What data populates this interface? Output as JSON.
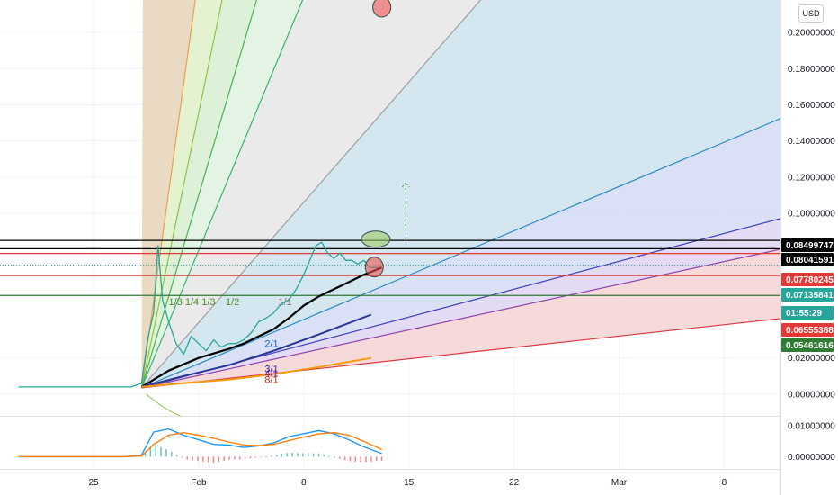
{
  "currency": "USD",
  "chart_data": [
    {
      "type": "line",
      "panel": "price",
      "y_scale": "linear",
      "ylim": [
        -0.012,
        0.218
      ],
      "y_ticks": [
        "0.20000000",
        "0.18000000",
        "0.16000000",
        "0.14000000",
        "0.12000000",
        "0.10000000",
        "0.02000000",
        "0.00000000"
      ],
      "x_ticks": [
        "25",
        "Feb",
        "8",
        "15",
        "22",
        "Mar",
        "8"
      ],
      "x_tick_days": [
        25,
        32,
        39,
        46,
        53,
        60,
        67
      ],
      "pivot": {
        "day": 28.2,
        "price": 0.0035
      },
      "gann_fan": {
        "fills": [
          {
            "color": "#e8d3b8",
            "to_angle": 0
          },
          {
            "color": "#dff0c8",
            "to_angle": 1
          },
          {
            "color": "#d7efd2",
            "to_angle": 2
          },
          {
            "color": "#dff2df",
            "to_angle": 3
          },
          {
            "color": "#e6e6e6",
            "to_angle": 4
          },
          {
            "color": "#cde3ee",
            "to_angle": 5
          },
          {
            "color": "#d3dcf5",
            "to_angle": 6
          },
          {
            "color": "#e0d4f2",
            "to_angle": 7
          },
          {
            "color": "#f4d3d3",
            "to_angle": 8
          }
        ],
        "rays": [
          {
            "slope": 0.06,
            "color": "#e8a14d"
          },
          {
            "slope": 0.04,
            "color": "#8bc34a"
          },
          {
            "slope": 0.028,
            "color": "#4caf50"
          },
          {
            "slope": 0.02,
            "color": "#3bb36b"
          },
          {
            "slope": 0.0095,
            "color": "#9e9e9e"
          },
          {
            "slope": 0.0035,
            "color": "#2e8bc0"
          },
          {
            "slope": 0.0022,
            "color": "#3f3fbf"
          },
          {
            "slope": 0.0018,
            "color": "#8e44ad"
          },
          {
            "slope": 0.0009,
            "color": "#d9363e"
          }
        ],
        "labels": [
          {
            "text": "1/3",
            "day": 30.0,
            "price": 0.0492,
            "color": "#558b2f"
          },
          {
            "text": "1/4",
            "day": 31.1,
            "price": 0.0492,
            "color": "#558b2f"
          },
          {
            "text": "1/3",
            "day": 32.2,
            "price": 0.0492,
            "color": "#558b2f"
          },
          {
            "text": "1/2",
            "day": 33.8,
            "price": 0.0492,
            "color": "#558b2f"
          },
          {
            "text": "1/1",
            "day": 37.3,
            "price": 0.0492,
            "color": "#757575"
          },
          {
            "text": "2/1",
            "day": 36.4,
            "price": 0.0262,
            "color": "#1565c0"
          },
          {
            "text": "3/1",
            "day": 36.4,
            "price": 0.0122,
            "color": "#283593"
          },
          {
            "text": "4/1",
            "day": 36.4,
            "price": 0.0096,
            "color": "#6a1b9a"
          },
          {
            "text": "8/1",
            "day": 36.4,
            "price": 0.0061,
            "color": "#c62828"
          }
        ]
      },
      "horizontal_levels": [
        {
          "label": "0.08499747",
          "value": 0.085,
          "color": "#000000"
        },
        {
          "label": "0.08041591",
          "value": 0.0804,
          "color": "#000000"
        },
        {
          "label": "0.07780245",
          "value": 0.0778,
          "color": "#e53935"
        },
        {
          "label": "0.07135841",
          "value": 0.0714,
          "color": "#26a69a"
        },
        {
          "label": "01:55:29",
          "value": 0.0678,
          "color": "#26a69a"
        },
        {
          "label": "0.06555388",
          "value": 0.0656,
          "color": "#e53935"
        },
        {
          "label": "0.05461616",
          "value": 0.0546,
          "color": "#2e7d32"
        }
      ],
      "series": [
        {
          "kind": "price",
          "color": "#26a69a",
          "x": [
            20,
            22,
            24,
            26,
            27.5,
            28.2,
            28.6,
            29.0,
            29.3,
            29.6,
            30.0,
            30.5,
            31.0,
            31.5,
            32.0,
            32.5,
            33.0,
            33.5,
            34.0,
            34.5,
            35.0,
            35.5,
            36.0,
            36.5,
            37.0,
            37.5,
            38.0,
            38.5,
            39.0,
            39.4,
            39.8,
            40.2,
            40.6,
            41.0,
            41.4,
            41.8,
            42.2,
            42.6,
            43.0,
            43.4,
            43.8,
            44.2
          ],
          "y": [
            0.004,
            0.004,
            0.004,
            0.004,
            0.004,
            0.006,
            0.03,
            0.045,
            0.082,
            0.052,
            0.04,
            0.028,
            0.022,
            0.032,
            0.028,
            0.024,
            0.03,
            0.026,
            0.028,
            0.028,
            0.03,
            0.034,
            0.04,
            0.042,
            0.045,
            0.05,
            0.052,
            0.058,
            0.066,
            0.074,
            0.082,
            0.084,
            0.078,
            0.075,
            0.078,
            0.074,
            0.074,
            0.072,
            0.074,
            0.07,
            0.07,
            0.07
          ]
        },
        {
          "kind": "moving_average",
          "color": "#000000",
          "x": [
            28.2,
            30,
            32,
            34,
            35,
            36,
            37,
            38,
            39,
            40,
            41,
            42,
            43,
            44.2
          ],
          "y": [
            0.004,
            0.013,
            0.02,
            0.025,
            0.028,
            0.032,
            0.036,
            0.042,
            0.049,
            0.054,
            0.058,
            0.062,
            0.066,
            0.07
          ]
        },
        {
          "kind": "moving_average",
          "color": "#283593",
          "x": [
            28.2,
            31,
            34,
            37,
            40,
            43.5
          ],
          "y": [
            0.004,
            0.01,
            0.016,
            0.024,
            0.033,
            0.044
          ]
        },
        {
          "kind": "moving_average",
          "color": "#f39c12",
          "x": [
            28.2,
            31,
            34,
            37,
            40,
            43.5
          ],
          "y": [
            0.004,
            0.006,
            0.008,
            0.011,
            0.015,
            0.02
          ]
        }
      ],
      "annotations": [
        {
          "kind": "ellipse",
          "day": 43.8,
          "price": 0.0857,
          "color": "#9ccc65"
        },
        {
          "kind": "ellipse",
          "day": 43.7,
          "price": 0.0703,
          "color": "#ef5350"
        },
        {
          "kind": "ellipse",
          "day": 44.2,
          "price": 0.214,
          "color": "#ef5350"
        },
        {
          "kind": "dotted_arrow",
          "day": 45.8,
          "from_price": 0.0857,
          "to_price": 0.117,
          "color": "#43a047"
        }
      ]
    },
    {
      "type": "line",
      "panel": "indicator",
      "ylim": [
        -0.004,
        0.013
      ],
      "y_ticks": [
        "0.01000000",
        "0.00000000"
      ],
      "series": [
        {
          "kind": "macd",
          "color": "#2196f3",
          "x": [
            20,
            27,
            28.2,
            29,
            30,
            31,
            32,
            33,
            34,
            35,
            36,
            37,
            38,
            39,
            40,
            41,
            42,
            43,
            44.2
          ],
          "y": [
            0,
            0,
            0.0005,
            0.008,
            0.009,
            0.007,
            0.0055,
            0.004,
            0.0038,
            0.003,
            0.0035,
            0.0045,
            0.0065,
            0.0075,
            0.0085,
            0.0075,
            0.0055,
            0.0032,
            0.001
          ]
        },
        {
          "kind": "signal",
          "color": "#ff7f0e",
          "x": [
            20,
            27,
            28.2,
            29,
            30,
            31,
            32,
            33,
            34,
            35,
            36,
            37,
            38,
            39,
            40,
            41,
            42,
            43,
            44.2
          ],
          "y": [
            0,
            0,
            0.0002,
            0.004,
            0.007,
            0.0078,
            0.007,
            0.006,
            0.0048,
            0.0038,
            0.0036,
            0.004,
            0.0052,
            0.0064,
            0.0074,
            0.0078,
            0.007,
            0.005,
            0.0023
          ]
        }
      ]
    }
  ]
}
